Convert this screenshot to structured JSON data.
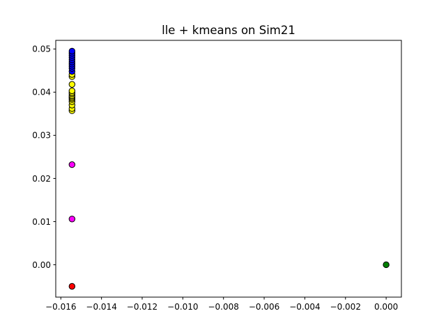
{
  "chart_data": {
    "type": "scatter",
    "title": "lle + kmeans on Sim21",
    "xlabel": "",
    "ylabel": "",
    "xlim": [
      -0.01625,
      0.00075
    ],
    "ylim": [
      -0.0075,
      0.052
    ],
    "xticks": [
      -0.016,
      -0.014,
      -0.012,
      -0.01,
      -0.008,
      -0.006,
      -0.004,
      -0.002,
      0.0
    ],
    "xtick_labels": [
      "−0.016",
      "−0.014",
      "−0.012",
      "−0.010",
      "−0.008",
      "−0.006",
      "−0.004",
      "−0.002",
      "0.000"
    ],
    "yticks": [
      0.0,
      0.01,
      0.02,
      0.03,
      0.04,
      0.05
    ],
    "ytick_labels": [
      "0.00",
      "0.01",
      "0.02",
      "0.03",
      "0.04",
      "0.05"
    ],
    "grid": false,
    "legend": "none",
    "series": [
      {
        "color": "#ffff00",
        "x": [
          -0.01545,
          -0.01545,
          -0.01545,
          -0.01545,
          -0.01545,
          -0.01545,
          -0.01545,
          -0.01545,
          -0.01545,
          -0.01545,
          -0.01545,
          -0.01545,
          -0.01545,
          -0.01545
        ],
        "y": [
          0.0357,
          0.0362,
          0.037,
          0.0378,
          0.0383,
          0.0386,
          0.0389,
          0.0392,
          0.0396,
          0.0399,
          0.0403,
          0.0418,
          0.0436,
          0.0441
        ]
      },
      {
        "color": "#0000ff",
        "x": [
          -0.01545,
          -0.01545,
          -0.01545,
          -0.01545,
          -0.01545,
          -0.01545,
          -0.01545,
          -0.01545,
          -0.01545,
          -0.01545
        ],
        "y": [
          0.0448,
          0.0455,
          0.046,
          0.0465,
          0.047,
          0.0475,
          0.048,
          0.0485,
          0.049,
          0.0495
        ]
      },
      {
        "color": "#ff00ff",
        "x": [
          -0.01545,
          -0.01545
        ],
        "y": [
          0.0232,
          0.0106
        ]
      },
      {
        "color": "#ff0000",
        "x": [
          -0.01545
        ],
        "y": [
          -0.005
        ]
      },
      {
        "color": "#008000",
        "x": [
          0.0
        ],
        "y": [
          0.0
        ]
      }
    ]
  }
}
